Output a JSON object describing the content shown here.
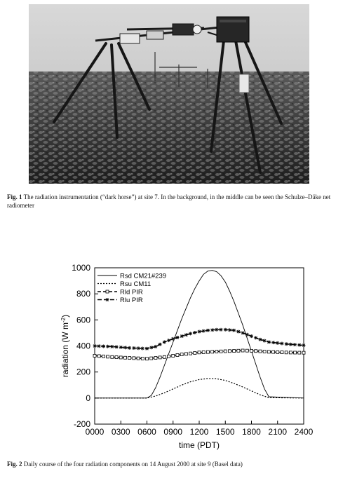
{
  "figure1": {
    "caption_label": "Fig. 1",
    "caption_text": "The radiation instrumentation (“dark horse”) at site 7. In the background, in the middle can be seen the Schulze–Däke net radiometer"
  },
  "figure2": {
    "caption_label": "Fig. 2",
    "caption_text": "Daily course of the four radiation components on 14 August 2000 at site 9 (Basel data)"
  },
  "chart_data": {
    "type": "line",
    "title": "",
    "xlabel": "time (PDT)",
    "ylabel": "radiation (W m",
    "ylabel_sup": "-2",
    "ylabel_end": ")",
    "xlim": [
      0,
      24
    ],
    "ylim": [
      -200,
      1000
    ],
    "x_ticks": [
      0,
      3,
      6,
      9,
      12,
      15,
      18,
      21,
      24
    ],
    "x_tick_labels": [
      "0000",
      "0300",
      "0600",
      "0900",
      "1200",
      "1500",
      "1800",
      "2100",
      "2400"
    ],
    "y_ticks": [
      -200,
      0,
      200,
      400,
      600,
      800,
      1000
    ],
    "y_tick_labels": [
      "-200",
      "0",
      "200",
      "400",
      "600",
      "800",
      "1000"
    ],
    "legend_position": "top-left",
    "series": [
      {
        "name": "Rsd CM21#239",
        "style": "solid",
        "x": [
          0,
          6,
          6.5,
          7,
          7.5,
          8,
          8.5,
          9,
          9.5,
          10,
          10.5,
          11,
          11.5,
          12,
          12.5,
          13,
          13.5,
          14,
          14.5,
          15,
          15.5,
          16,
          16.5,
          17,
          17.5,
          18,
          18.5,
          19,
          19.5,
          20,
          24
        ],
        "y": [
          0,
          0,
          20,
          80,
          160,
          250,
          340,
          430,
          520,
          610,
          690,
          770,
          840,
          900,
          950,
          975,
          980,
          970,
          940,
          890,
          820,
          740,
          650,
          560,
          460,
          360,
          260,
          160,
          70,
          10,
          0
        ]
      },
      {
        "name": "Rsu CM11",
        "style": "dotted",
        "x": [
          0,
          6,
          7,
          8,
          9,
          10,
          11,
          12,
          13,
          14,
          15,
          16,
          17,
          18,
          19,
          20,
          24
        ],
        "y": [
          0,
          0,
          15,
          40,
          70,
          100,
          125,
          142,
          150,
          148,
          135,
          112,
          85,
          55,
          25,
          3,
          0
        ]
      },
      {
        "name": "Rld PIR",
        "style": "dash-square",
        "x": [
          0,
          2,
          4,
          6,
          8,
          10,
          12,
          14,
          16,
          17,
          18,
          20,
          22,
          24
        ],
        "y": [
          325,
          315,
          308,
          302,
          315,
          335,
          350,
          357,
          362,
          365,
          363,
          355,
          350,
          348
        ]
      },
      {
        "name": "Rlu PIR",
        "style": "dash-star",
        "x": [
          0,
          2,
          4,
          6,
          7,
          8,
          9,
          10,
          11,
          12,
          13,
          14,
          15,
          16,
          17,
          18,
          19,
          20,
          22,
          24
        ],
        "y": [
          400,
          395,
          385,
          380,
          395,
          430,
          455,
          475,
          495,
          510,
          520,
          525,
          525,
          520,
          500,
          475,
          450,
          430,
          415,
          405
        ]
      }
    ]
  }
}
